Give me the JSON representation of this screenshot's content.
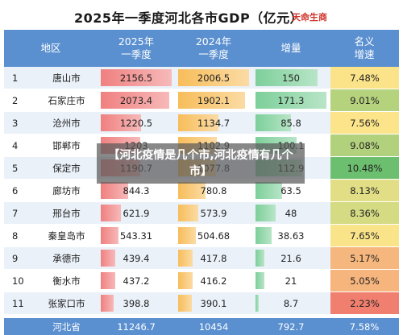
{
  "title": "2025年一季度河北各市GDP（亿元）",
  "brand": "天命生商",
  "overlay_text": "【河北疫情是几个市,河北疫情有几个市】",
  "colors": {
    "header": "#5a8fd0",
    "gdp2025": "#f08080",
    "gdp2024": "#f7bd5a",
    "growth": "#7dcf9a",
    "rate_low": "#f07f6f",
    "rate_mid": "#fbe58a",
    "rate_high": "#6cbf6e"
  },
  "chart_data": {
    "type": "table",
    "columns": [
      "地区",
      "2025年\n一季度",
      "2024年\n一季度",
      "增量",
      "名义\n增速"
    ],
    "rows": [
      {
        "rank": "1",
        "city": "唐山市",
        "gdp2025": "2156.5",
        "gdp2024": "2006.5",
        "growth": "150",
        "rate": "7.48%"
      },
      {
        "rank": "2",
        "city": "石家庄市",
        "gdp2025": "2073.4",
        "gdp2024": "1902.1",
        "growth": "171.3",
        "rate": "9.01%"
      },
      {
        "rank": "3",
        "city": "沧州市",
        "gdp2025": "1220.5",
        "gdp2024": "1134.7",
        "growth": "85.8",
        "rate": "7.56%"
      },
      {
        "rank": "4",
        "city": "邯郸市",
        "gdp2025": "1203",
        "gdp2024": "1102.9",
        "growth": "100.1",
        "rate": "9.08%"
      },
      {
        "rank": "5",
        "city": "保定市",
        "gdp2025": "1190.7",
        "gdp2024": "1077.8",
        "growth": "112.9",
        "rate": "10.48%"
      },
      {
        "rank": "6",
        "city": "廊坊市",
        "gdp2025": "844.3",
        "gdp2024": "780.8",
        "growth": "63.5",
        "rate": "8.13%"
      },
      {
        "rank": "7",
        "city": "邢台市",
        "gdp2025": "621.9",
        "gdp2024": "573.9",
        "growth": "48",
        "rate": "8.36%"
      },
      {
        "rank": "8",
        "city": "秦皇岛市",
        "gdp2025": "543.31",
        "gdp2024": "504.68",
        "growth": "38.63",
        "rate": "7.65%"
      },
      {
        "rank": "9",
        "city": "承德市",
        "gdp2025": "439.4",
        "gdp2024": "417.8",
        "growth": "21.6",
        "rate": "5.17%"
      },
      {
        "rank": "10",
        "city": "衡水市",
        "gdp2025": "437.2",
        "gdp2024": "416.2",
        "growth": "21",
        "rate": "5.05%"
      },
      {
        "rank": "11",
        "city": "张家口市",
        "gdp2025": "398.8",
        "gdp2024": "390.1",
        "growth": "8.7",
        "rate": "2.23%"
      }
    ],
    "total": {
      "city": "河北省",
      "gdp2025": "11246.7",
      "gdp2024": "10454",
      "growth": "792.7",
      "rate": "7.58%"
    }
  }
}
